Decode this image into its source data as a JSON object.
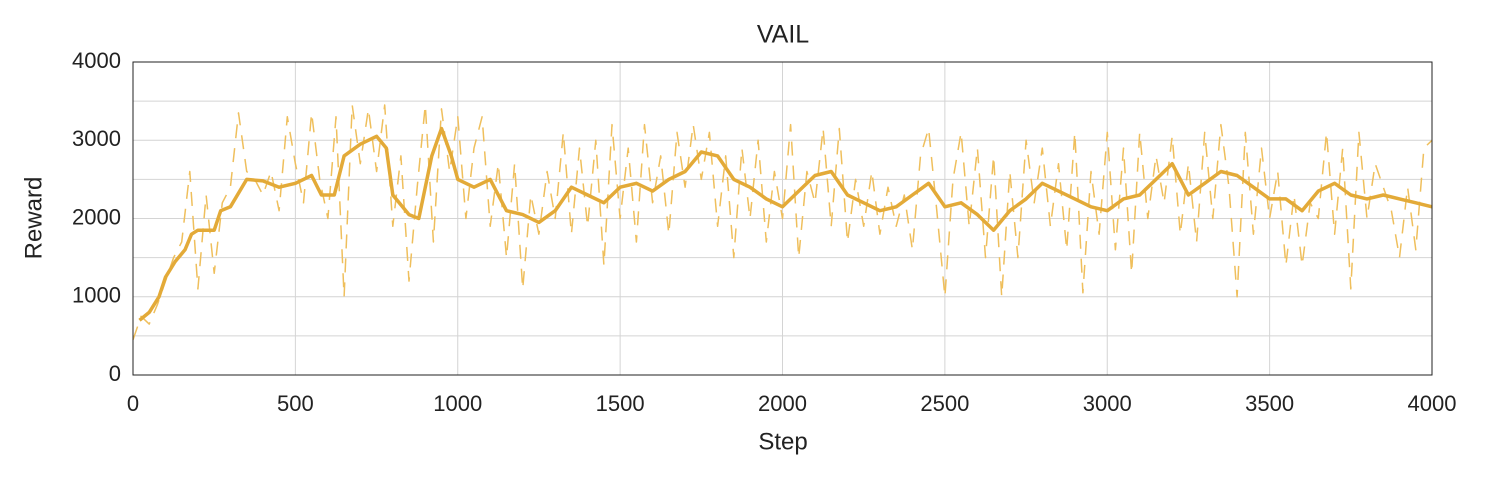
{
  "chart_data": {
    "type": "line",
    "title": "VAIL",
    "xlabel": "Step",
    "ylabel": "Reward",
    "xlim": [
      0,
      4000
    ],
    "xticks": [
      0,
      500,
      1000,
      1500,
      2000,
      2500,
      3000,
      3500,
      4000
    ],
    "ylim": [
      0,
      4000
    ],
    "yticks": [
      0,
      1000,
      2000,
      3000,
      4000
    ],
    "yminorticks": [
      500,
      1500,
      2500,
      3500
    ],
    "grid": true,
    "series": [
      {
        "color": "#efbf5c",
        "linestyle": "dashed",
        "linewidth": 1.5,
        "x": [
          0,
          25,
          50,
          75,
          100,
          125,
          150,
          175,
          200,
          225,
          250,
          275,
          300,
          325,
          350,
          375,
          400,
          425,
          450,
          475,
          500,
          525,
          550,
          575,
          600,
          625,
          650,
          675,
          700,
          725,
          750,
          775,
          800,
          825,
          850,
          875,
          900,
          925,
          950,
          975,
          1000,
          1025,
          1050,
          1075,
          1100,
          1125,
          1150,
          1175,
          1200,
          1225,
          1250,
          1275,
          1300,
          1325,
          1350,
          1375,
          1400,
          1425,
          1450,
          1475,
          1500,
          1525,
          1550,
          1575,
          1600,
          1625,
          1650,
          1675,
          1700,
          1725,
          1750,
          1775,
          1800,
          1825,
          1850,
          1875,
          1900,
          1925,
          1950,
          1975,
          2000,
          2025,
          2050,
          2075,
          2100,
          2125,
          2150,
          2175,
          2200,
          2225,
          2250,
          2275,
          2300,
          2325,
          2350,
          2375,
          2400,
          2425,
          2450,
          2475,
          2500,
          2525,
          2550,
          2575,
          2600,
          2625,
          2650,
          2675,
          2700,
          2725,
          2750,
          2775,
          2800,
          2825,
          2850,
          2875,
          2900,
          2925,
          2950,
          2975,
          3000,
          3025,
          3050,
          3075,
          3100,
          3125,
          3150,
          3175,
          3200,
          3225,
          3250,
          3275,
          3300,
          3325,
          3350,
          3375,
          3400,
          3425,
          3450,
          3475,
          3500,
          3525,
          3550,
          3575,
          3600,
          3625,
          3650,
          3675,
          3700,
          3725,
          3750,
          3775,
          3800,
          3825,
          3850,
          3875,
          3900,
          3925,
          3950,
          3975,
          4000
        ],
        "values": [
          450,
          750,
          650,
          900,
          1200,
          1500,
          1700,
          2600,
          1100,
          2300,
          1300,
          2200,
          2400,
          3350,
          2600,
          2500,
          2300,
          2600,
          2100,
          3300,
          2700,
          2200,
          3350,
          2500,
          2000,
          3300,
          1000,
          3450,
          2700,
          3400,
          2600,
          3450,
          1900,
          2800,
          1200,
          2400,
          3450,
          1700,
          3400,
          2600,
          3300,
          2000,
          2900,
          3300,
          1900,
          2700,
          1500,
          2700,
          1100,
          2300,
          1800,
          2600,
          2000,
          3100,
          1800,
          2900,
          1900,
          3000,
          1400,
          3200,
          2000,
          2900,
          1700,
          3200,
          2200,
          2800,
          1800,
          3100,
          2400,
          3200,
          2500,
          3100,
          1900,
          2800,
          1500,
          2900,
          2000,
          3000,
          1700,
          2600,
          2000,
          3200,
          1500,
          2600,
          2200,
          3150,
          1900,
          3150,
          1700,
          2500,
          1900,
          2600,
          1800,
          2400,
          1900,
          2300,
          1600,
          2800,
          3150,
          2100,
          1000,
          2500,
          3100,
          1900,
          2900,
          1500,
          2800,
          1000,
          2600,
          1500,
          3000,
          2200,
          2900,
          1900,
          2700,
          1600,
          3100,
          1050,
          2600,
          1800,
          3100,
          1600,
          2900,
          1300,
          3100,
          2000,
          2800,
          2200,
          3050,
          1800,
          2700,
          1700,
          3100,
          2000,
          3200,
          2400,
          1000,
          3100,
          1800,
          2900,
          2000,
          2600,
          1400,
          2300,
          1400,
          2200,
          2000,
          3100,
          1800,
          2900,
          1100,
          3100,
          2000,
          2700,
          2400,
          2100,
          1500,
          2400,
          1600,
          2900,
          3000
        ]
      },
      {
        "color": "#e3aa38",
        "linestyle": "solid",
        "linewidth": 3.5,
        "x": [
          20,
          50,
          80,
          100,
          130,
          160,
          180,
          200,
          250,
          270,
          300,
          350,
          400,
          450,
          500,
          550,
          580,
          620,
          650,
          700,
          750,
          780,
          800,
          850,
          880,
          920,
          950,
          980,
          1000,
          1050,
          1100,
          1150,
          1200,
          1250,
          1300,
          1350,
          1400,
          1450,
          1500,
          1550,
          1600,
          1650,
          1700,
          1750,
          1800,
          1850,
          1900,
          1950,
          2000,
          2050,
          2100,
          2150,
          2200,
          2250,
          2300,
          2350,
          2400,
          2450,
          2500,
          2550,
          2600,
          2650,
          2700,
          2750,
          2800,
          2850,
          2900,
          2950,
          3000,
          3050,
          3100,
          3150,
          3200,
          3250,
          3300,
          3350,
          3400,
          3450,
          3500,
          3550,
          3600,
          3650,
          3700,
          3750,
          3800,
          3850,
          3900,
          3950,
          4000
        ],
        "values": [
          700,
          800,
          1000,
          1250,
          1450,
          1600,
          1800,
          1850,
          1850,
          2100,
          2150,
          2500,
          2480,
          2400,
          2450,
          2550,
          2300,
          2300,
          2800,
          2950,
          3050,
          2900,
          2300,
          2050,
          2000,
          2800,
          3150,
          2800,
          2500,
          2400,
          2500,
          2100,
          2050,
          1950,
          2100,
          2400,
          2300,
          2200,
          2400,
          2450,
          2350,
          2500,
          2600,
          2850,
          2800,
          2500,
          2400,
          2250,
          2150,
          2350,
          2550,
          2600,
          2300,
          2200,
          2100,
          2150,
          2300,
          2450,
          2150,
          2200,
          2050,
          1850,
          2100,
          2250,
          2450,
          2350,
          2250,
          2150,
          2100,
          2250,
          2300,
          2500,
          2700,
          2300,
          2450,
          2600,
          2550,
          2400,
          2250,
          2250,
          2100,
          2350,
          2450,
          2300,
          2250,
          2300,
          2250,
          2200,
          2150
        ]
      }
    ]
  }
}
